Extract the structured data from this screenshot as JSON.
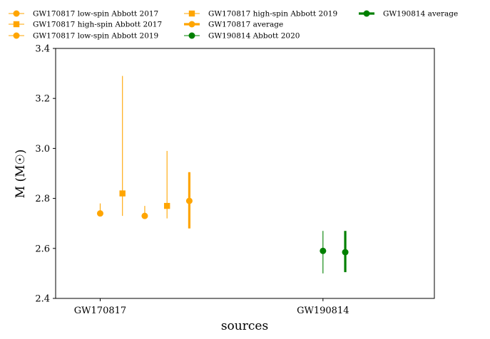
{
  "chart_data": {
    "type": "scatter",
    "title": "",
    "xlabel": "sources",
    "ylabel": "M (M☉)",
    "categories": [
      "GW170817",
      "GW190814"
    ],
    "ylim": [
      2.4,
      3.4
    ],
    "yticks": [
      "2.4",
      "2.6",
      "2.8",
      "3.0",
      "3.2",
      "3.4"
    ],
    "legend_placement": "top",
    "grid": false,
    "series": [
      {
        "name": "GW170817 low-spin Abbott 2017",
        "category": "GW170817",
        "x": 0.0,
        "y": 2.74,
        "err_low": 2.73,
        "err_high": 2.78,
        "marker": "circle",
        "color": "#FFA500",
        "linewidth": "thin"
      },
      {
        "name": "GW170817 high-spin Abbott 2017",
        "category": "GW170817",
        "x": 0.1,
        "y": 2.82,
        "err_low": 2.73,
        "err_high": 3.29,
        "marker": "square",
        "color": "#FFA500",
        "linewidth": "thin"
      },
      {
        "name": "GW170817 low-spin Abbott 2019",
        "category": "GW170817",
        "x": 0.2,
        "y": 2.73,
        "err_low": 2.72,
        "err_high": 2.77,
        "marker": "circle",
        "color": "#FFA500",
        "linewidth": "thin"
      },
      {
        "name": "GW170817 high-spin Abbott 2019",
        "category": "GW170817",
        "x": 0.3,
        "y": 2.77,
        "err_low": 2.72,
        "err_high": 2.99,
        "marker": "square",
        "color": "#FFA500",
        "linewidth": "thin"
      },
      {
        "name": "GW170817 average",
        "category": "GW170817",
        "x": 0.4,
        "y": 2.79,
        "err_low": 2.68,
        "err_high": 2.905,
        "marker": "circle",
        "color": "#FFA500",
        "linewidth": "thick"
      },
      {
        "name": "GW190814 Abbott 2020",
        "category": "GW190814",
        "x": 1.0,
        "y": 2.59,
        "err_low": 2.5,
        "err_high": 2.67,
        "marker": "circle",
        "color": "#008000",
        "linewidth": "thin"
      },
      {
        "name": "GW190814 average",
        "category": "GW190814",
        "x": 1.1,
        "y": 2.585,
        "err_low": 2.505,
        "err_high": 2.67,
        "marker": "circle",
        "color": "#008000",
        "linewidth": "thick"
      }
    ]
  }
}
